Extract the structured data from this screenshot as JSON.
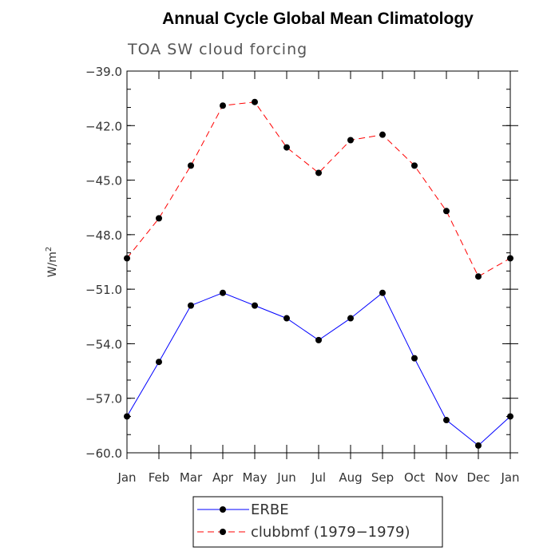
{
  "chart_data": {
    "type": "line",
    "title": "Annual Cycle Global Mean Climatology",
    "subtitle": "TOA SW cloud forcing",
    "xlabel": "",
    "ylabel": "W/m",
    "ylabel_superscript": "2",
    "categories": [
      "Jan",
      "Feb",
      "Mar",
      "Apr",
      "May",
      "Jun",
      "Jul",
      "Aug",
      "Sep",
      "Oct",
      "Nov",
      "Dec",
      "Jan"
    ],
    "ylim": [
      -60.0,
      -39.0
    ],
    "yticks": [
      -39.0,
      -42.0,
      -45.0,
      -48.0,
      -51.0,
      -54.0,
      -57.0,
      -60.0
    ],
    "ytick_labels": [
      "−39.0",
      "−42.0",
      "−45.0",
      "−48.0",
      "−51.0",
      "−54.0",
      "−57.0",
      "−60.0"
    ],
    "grid": false,
    "legend_position": "bottom-center",
    "series": [
      {
        "name": "ERBE",
        "color": "#0000ff",
        "dash": "solid",
        "values": [
          -58.0,
          -55.0,
          -51.9,
          -51.2,
          -51.9,
          -52.6,
          -53.8,
          -52.6,
          -51.2,
          -54.8,
          -58.2,
          -59.6,
          -58.0
        ]
      },
      {
        "name": "clubbmf (1979−1979)",
        "color": "#ff0000",
        "dash": "dashed",
        "values": [
          -49.3,
          -47.1,
          -44.2,
          -40.9,
          -40.7,
          -43.2,
          -44.6,
          -42.8,
          -42.5,
          -44.2,
          -46.7,
          -50.3,
          -49.3
        ]
      }
    ]
  }
}
